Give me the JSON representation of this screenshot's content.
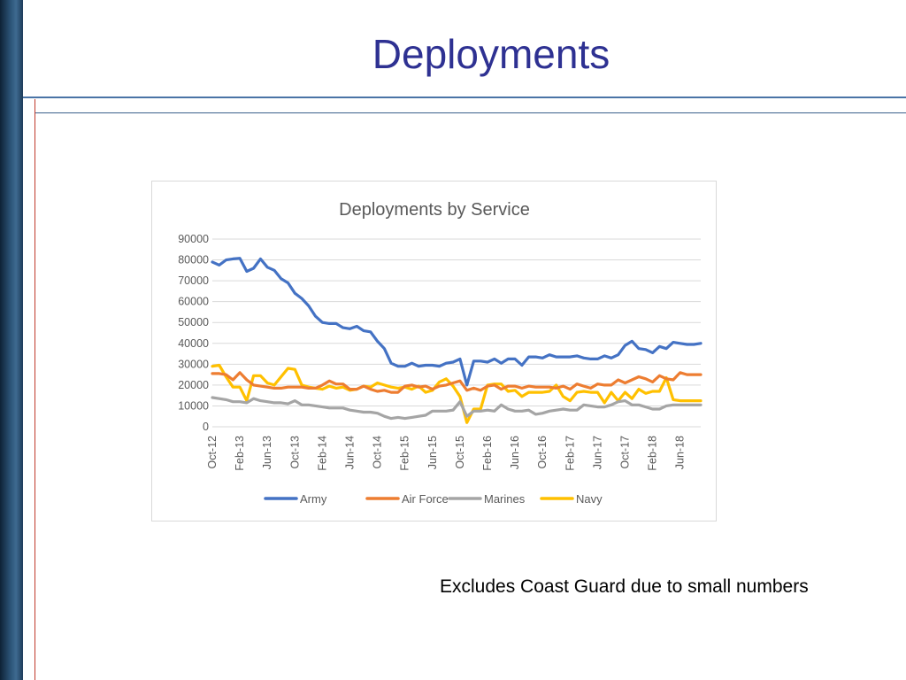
{
  "slide": {
    "title": "Deployments",
    "note": "Excludes Coast Guard due to small numbers"
  },
  "colors": {
    "title": "#2e3192",
    "army": "#4472c4",
    "air_force": "#ed7d31",
    "marines": "#a5a5a5",
    "navy": "#ffc000"
  },
  "chart_data": {
    "type": "line",
    "title": "Deployments by Service",
    "xlabel": "",
    "ylabel": "",
    "ylim": [
      0,
      90000
    ],
    "yticks": [
      "90000",
      "80000",
      "70000",
      "60000",
      "50000",
      "40000",
      "30000",
      "20000",
      "10000",
      "0"
    ],
    "grid": true,
    "legend_position": "bottom",
    "x_tick_labels": [
      "Oct-12",
      "Feb-13",
      "Jun-13",
      "Oct-13",
      "Feb-14",
      "Jun-14",
      "Oct-14",
      "Feb-15",
      "Jun-15",
      "Oct-15",
      "Feb-16",
      "Jun-16",
      "Oct-16",
      "Feb-17",
      "Jun-17",
      "Oct-17",
      "Feb-18",
      "Jun-18"
    ],
    "x_tick_step": 4,
    "series": [
      {
        "name": "Army",
        "color": "#4472c4",
        "values": [
          79000,
          77500,
          80000,
          80500,
          80800,
          74500,
          76000,
          80500,
          76500,
          75000,
          71000,
          69000,
          64000,
          61500,
          58000,
          53000,
          50000,
          49500,
          49500,
          47500,
          47000,
          48200,
          46000,
          45500,
          41000,
          37500,
          30500,
          29000,
          29000,
          30500,
          29000,
          29500,
          29500,
          29000,
          30500,
          31000,
          32500,
          20000,
          31500,
          31500,
          31000,
          32500,
          30500,
          32500,
          32500,
          29500,
          33500,
          33500,
          33000,
          34500,
          33500,
          33500,
          33500,
          34000,
          33000,
          32500,
          32500,
          34000,
          33000,
          34500,
          39000,
          41000,
          37500,
          37000,
          35500,
          38500,
          37500,
          40500,
          40000,
          39500,
          39500,
          40000
        ]
      },
      {
        "name": "Air Force",
        "color": "#ed7d31",
        "values": [
          25500,
          25500,
          25000,
          22500,
          26000,
          22500,
          20000,
          19500,
          19000,
          18500,
          18500,
          19000,
          19000,
          19000,
          18500,
          18500,
          20000,
          22000,
          20500,
          20500,
          18000,
          18000,
          19500,
          18000,
          17000,
          17500,
          16500,
          16500,
          19500,
          20000,
          19000,
          19500,
          18000,
          19500,
          20000,
          21000,
          22000,
          17500,
          18500,
          17500,
          19500,
          20000,
          18000,
          19500,
          19500,
          18500,
          19500,
          19000,
          19000,
          19000,
          18500,
          19500,
          18000,
          20500,
          19500,
          18500,
          20500,
          20000,
          20000,
          22500,
          21000,
          22500,
          24000,
          23000,
          21500,
          24500,
          23000,
          22500,
          26000,
          25000,
          25000,
          25000
        ]
      },
      {
        "name": "Marines",
        "color": "#a5a5a5",
        "values": [
          14000,
          13500,
          13000,
          12000,
          12000,
          11500,
          13500,
          12500,
          12000,
          11500,
          11500,
          11000,
          12500,
          10500,
          10500,
          10000,
          9500,
          9000,
          9000,
          9000,
          8000,
          7500,
          7000,
          7000,
          6500,
          5000,
          4000,
          4500,
          4000,
          4500,
          5000,
          5500,
          7500,
          7500,
          7500,
          8000,
          12000,
          5000,
          7500,
          7500,
          8000,
          7500,
          10500,
          8500,
          7500,
          7500,
          8000,
          6000,
          6500,
          7500,
          8000,
          8500,
          8000,
          8000,
          10500,
          10000,
          9500,
          9500,
          10500,
          12000,
          12500,
          10500,
          10500,
          9500,
          8500,
          8500,
          10000,
          10500,
          10500,
          10500,
          10500,
          10500
        ]
      },
      {
        "name": "Navy",
        "color": "#ffc000",
        "values": [
          29000,
          29500,
          24000,
          19000,
          19000,
          12500,
          24500,
          24500,
          21000,
          20000,
          24000,
          28000,
          27500,
          20000,
          19000,
          18500,
          18000,
          19500,
          18500,
          19000,
          17500,
          18000,
          19500,
          19000,
          21000,
          20000,
          19000,
          18500,
          19000,
          18000,
          19500,
          16500,
          17500,
          21500,
          23000,
          19500,
          14500,
          2000,
          8500,
          8500,
          20000,
          20500,
          20500,
          17000,
          17500,
          14500,
          16500,
          16500,
          16500,
          17000,
          20000,
          14500,
          12500,
          16500,
          17000,
          16500,
          16500,
          11500,
          16500,
          12500,
          16500,
          13500,
          18000,
          16000,
          17000,
          17000,
          23500,
          13000,
          12500,
          12500,
          12500,
          12500
        ]
      }
    ]
  }
}
